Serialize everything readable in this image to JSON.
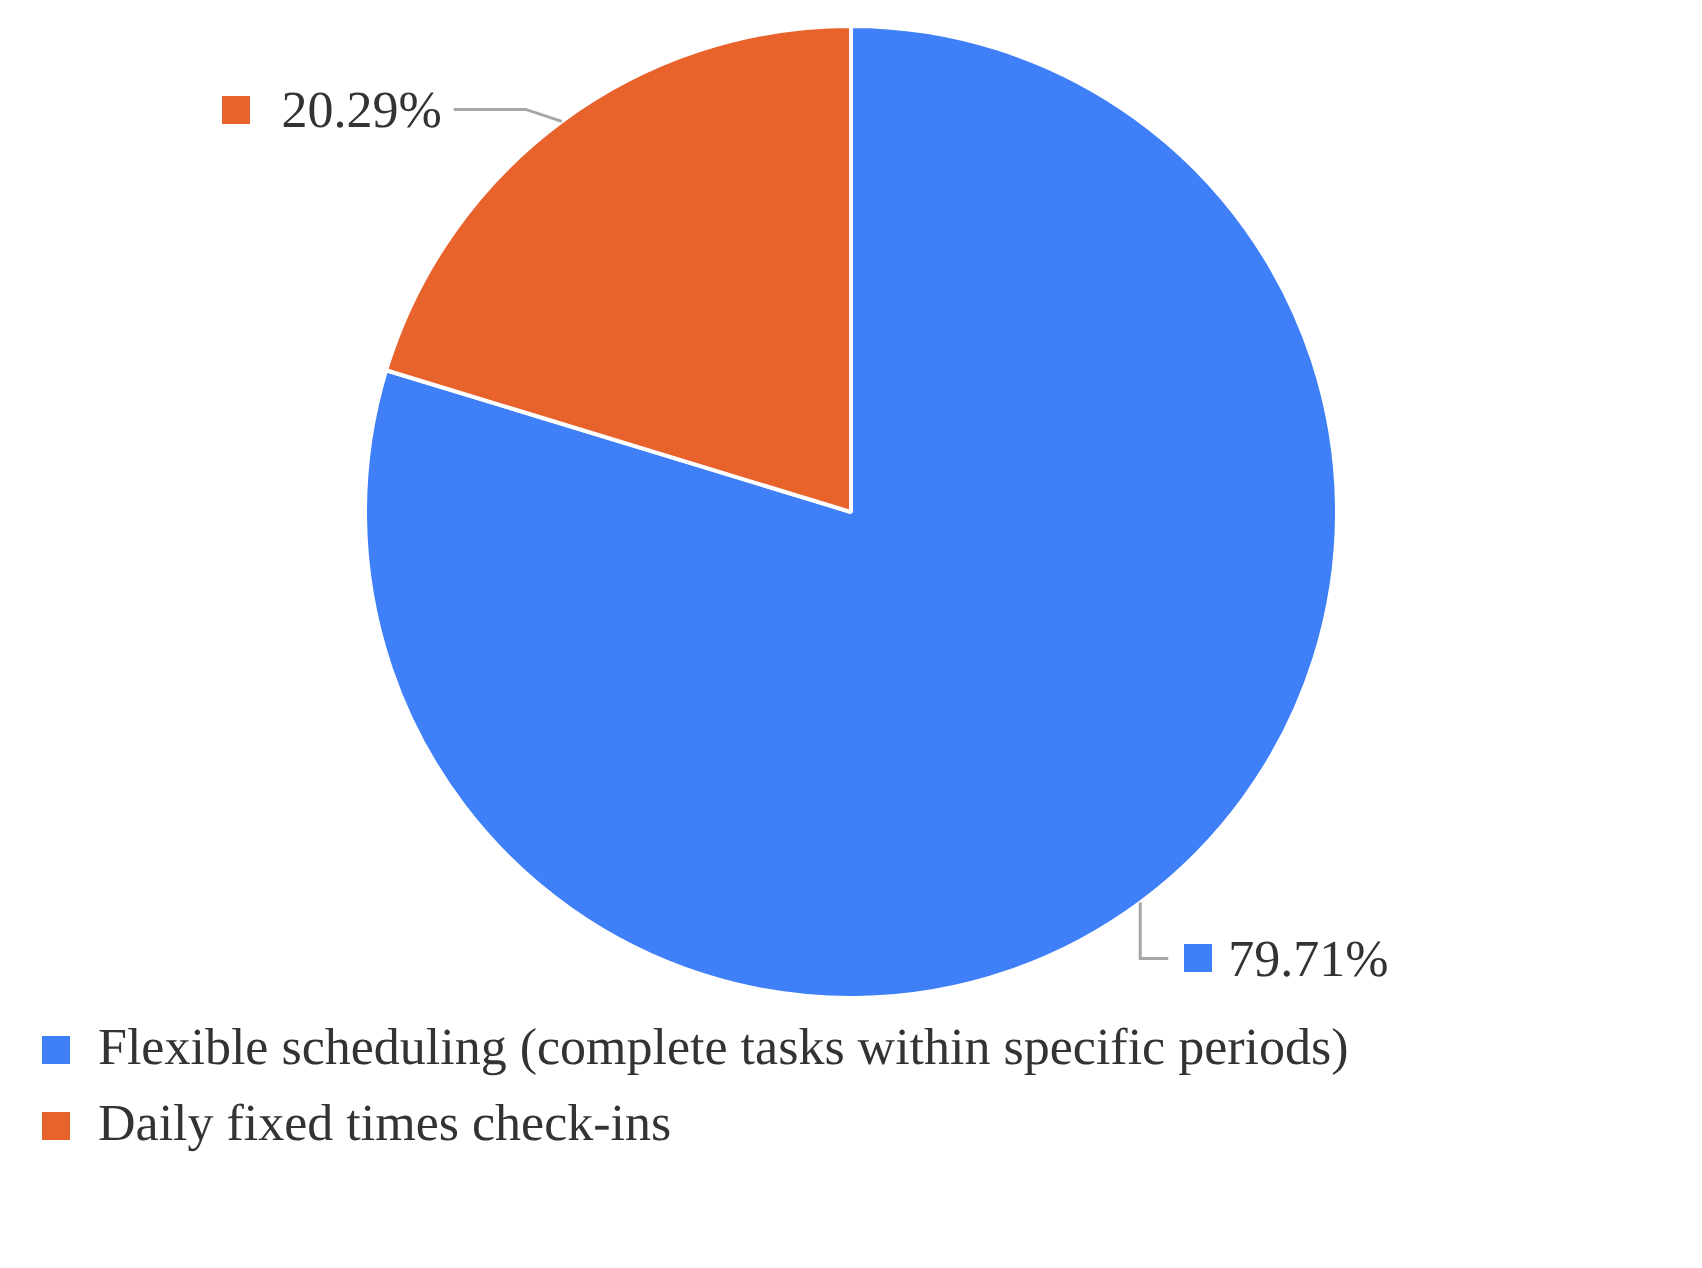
{
  "chart_data": {
    "type": "pie",
    "categories": [
      "Flexible scheduling (complete tasks within specific periods)",
      "Daily fixed times check-ins"
    ],
    "values": [
      79.71,
      20.29
    ],
    "colors": [
      "#3f7ff7",
      "#e8622c"
    ],
    "value_labels": [
      "79.71%",
      "20.29%"
    ],
    "legend": "bottom"
  }
}
